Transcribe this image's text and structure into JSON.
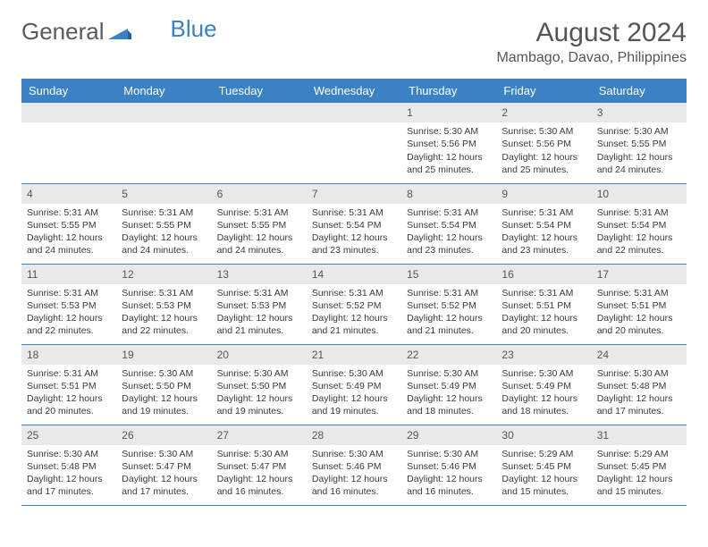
{
  "brand": {
    "part1": "General",
    "part2": "Blue"
  },
  "title": "August 2024",
  "location": "Mambago, Davao, Philippines",
  "styling": {
    "header_bg": "#3b82c4",
    "header_text": "#ffffff",
    "daynum_bg": "#e9e9e9",
    "row_border": "#3b82c4",
    "body_text": "#3a3a3a",
    "page_bg": "#ffffff",
    "title_fontsize": 30,
    "cell_fontsize": 10.5,
    "header_fontsize": 13
  },
  "weekdays": [
    "Sunday",
    "Monday",
    "Tuesday",
    "Wednesday",
    "Thursday",
    "Friday",
    "Saturday"
  ],
  "weeks": [
    [
      null,
      null,
      null,
      null,
      {
        "n": "1",
        "sr": "Sunrise: 5:30 AM",
        "ss": "Sunset: 5:56 PM",
        "dl": "Daylight: 12 hours and 25 minutes."
      },
      {
        "n": "2",
        "sr": "Sunrise: 5:30 AM",
        "ss": "Sunset: 5:56 PM",
        "dl": "Daylight: 12 hours and 25 minutes."
      },
      {
        "n": "3",
        "sr": "Sunrise: 5:30 AM",
        "ss": "Sunset: 5:55 PM",
        "dl": "Daylight: 12 hours and 24 minutes."
      }
    ],
    [
      {
        "n": "4",
        "sr": "Sunrise: 5:31 AM",
        "ss": "Sunset: 5:55 PM",
        "dl": "Daylight: 12 hours and 24 minutes."
      },
      {
        "n": "5",
        "sr": "Sunrise: 5:31 AM",
        "ss": "Sunset: 5:55 PM",
        "dl": "Daylight: 12 hours and 24 minutes."
      },
      {
        "n": "6",
        "sr": "Sunrise: 5:31 AM",
        "ss": "Sunset: 5:55 PM",
        "dl": "Daylight: 12 hours and 24 minutes."
      },
      {
        "n": "7",
        "sr": "Sunrise: 5:31 AM",
        "ss": "Sunset: 5:54 PM",
        "dl": "Daylight: 12 hours and 23 minutes."
      },
      {
        "n": "8",
        "sr": "Sunrise: 5:31 AM",
        "ss": "Sunset: 5:54 PM",
        "dl": "Daylight: 12 hours and 23 minutes."
      },
      {
        "n": "9",
        "sr": "Sunrise: 5:31 AM",
        "ss": "Sunset: 5:54 PM",
        "dl": "Daylight: 12 hours and 23 minutes."
      },
      {
        "n": "10",
        "sr": "Sunrise: 5:31 AM",
        "ss": "Sunset: 5:54 PM",
        "dl": "Daylight: 12 hours and 22 minutes."
      }
    ],
    [
      {
        "n": "11",
        "sr": "Sunrise: 5:31 AM",
        "ss": "Sunset: 5:53 PM",
        "dl": "Daylight: 12 hours and 22 minutes."
      },
      {
        "n": "12",
        "sr": "Sunrise: 5:31 AM",
        "ss": "Sunset: 5:53 PM",
        "dl": "Daylight: 12 hours and 22 minutes."
      },
      {
        "n": "13",
        "sr": "Sunrise: 5:31 AM",
        "ss": "Sunset: 5:53 PM",
        "dl": "Daylight: 12 hours and 21 minutes."
      },
      {
        "n": "14",
        "sr": "Sunrise: 5:31 AM",
        "ss": "Sunset: 5:52 PM",
        "dl": "Daylight: 12 hours and 21 minutes."
      },
      {
        "n": "15",
        "sr": "Sunrise: 5:31 AM",
        "ss": "Sunset: 5:52 PM",
        "dl": "Daylight: 12 hours and 21 minutes."
      },
      {
        "n": "16",
        "sr": "Sunrise: 5:31 AM",
        "ss": "Sunset: 5:51 PM",
        "dl": "Daylight: 12 hours and 20 minutes."
      },
      {
        "n": "17",
        "sr": "Sunrise: 5:31 AM",
        "ss": "Sunset: 5:51 PM",
        "dl": "Daylight: 12 hours and 20 minutes."
      }
    ],
    [
      {
        "n": "18",
        "sr": "Sunrise: 5:31 AM",
        "ss": "Sunset: 5:51 PM",
        "dl": "Daylight: 12 hours and 20 minutes."
      },
      {
        "n": "19",
        "sr": "Sunrise: 5:30 AM",
        "ss": "Sunset: 5:50 PM",
        "dl": "Daylight: 12 hours and 19 minutes."
      },
      {
        "n": "20",
        "sr": "Sunrise: 5:30 AM",
        "ss": "Sunset: 5:50 PM",
        "dl": "Daylight: 12 hours and 19 minutes."
      },
      {
        "n": "21",
        "sr": "Sunrise: 5:30 AM",
        "ss": "Sunset: 5:49 PM",
        "dl": "Daylight: 12 hours and 19 minutes."
      },
      {
        "n": "22",
        "sr": "Sunrise: 5:30 AM",
        "ss": "Sunset: 5:49 PM",
        "dl": "Daylight: 12 hours and 18 minutes."
      },
      {
        "n": "23",
        "sr": "Sunrise: 5:30 AM",
        "ss": "Sunset: 5:49 PM",
        "dl": "Daylight: 12 hours and 18 minutes."
      },
      {
        "n": "24",
        "sr": "Sunrise: 5:30 AM",
        "ss": "Sunset: 5:48 PM",
        "dl": "Daylight: 12 hours and 17 minutes."
      }
    ],
    [
      {
        "n": "25",
        "sr": "Sunrise: 5:30 AM",
        "ss": "Sunset: 5:48 PM",
        "dl": "Daylight: 12 hours and 17 minutes."
      },
      {
        "n": "26",
        "sr": "Sunrise: 5:30 AM",
        "ss": "Sunset: 5:47 PM",
        "dl": "Daylight: 12 hours and 17 minutes."
      },
      {
        "n": "27",
        "sr": "Sunrise: 5:30 AM",
        "ss": "Sunset: 5:47 PM",
        "dl": "Daylight: 12 hours and 16 minutes."
      },
      {
        "n": "28",
        "sr": "Sunrise: 5:30 AM",
        "ss": "Sunset: 5:46 PM",
        "dl": "Daylight: 12 hours and 16 minutes."
      },
      {
        "n": "29",
        "sr": "Sunrise: 5:30 AM",
        "ss": "Sunset: 5:46 PM",
        "dl": "Daylight: 12 hours and 16 minutes."
      },
      {
        "n": "30",
        "sr": "Sunrise: 5:29 AM",
        "ss": "Sunset: 5:45 PM",
        "dl": "Daylight: 12 hours and 15 minutes."
      },
      {
        "n": "31",
        "sr": "Sunrise: 5:29 AM",
        "ss": "Sunset: 5:45 PM",
        "dl": "Daylight: 12 hours and 15 minutes."
      }
    ]
  ]
}
